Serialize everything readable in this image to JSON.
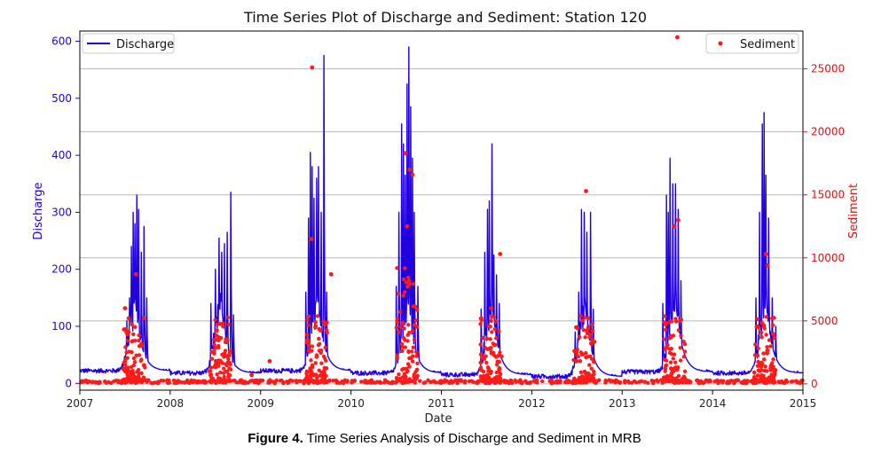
{
  "chart_data": {
    "type": "line+scatter",
    "title": "Time Series Plot of Discharge and Sediment: Station 120",
    "xlabel": "Date",
    "ylabel_left": "Discharge",
    "ylabel_right": "Sediment",
    "xlim": [
      2007,
      2015
    ],
    "ylim_left": [
      -12,
      618
    ],
    "ylim_right": [
      -500,
      28000
    ],
    "x_ticks": [
      "2007",
      "2008",
      "2009",
      "2010",
      "2011",
      "2012",
      "2013",
      "2014",
      "2015"
    ],
    "y_left_ticks": [
      0,
      100,
      200,
      300,
      400,
      500,
      600
    ],
    "y_right_ticks": [
      0,
      5000,
      10000,
      15000,
      20000,
      25000
    ],
    "grid": "horizontal (right axis)",
    "colors": {
      "discharge": "#2200dd",
      "sediment": "#ff1a1a",
      "left_axis": "#2200dd",
      "right_axis": "#dd1111"
    },
    "legend": [
      {
        "label": "Discharge",
        "location": "top-left"
      },
      {
        "label": "Sediment",
        "location": "top-right"
      }
    ],
    "discharge_baseline": [
      {
        "year": 2007,
        "base": 22
      },
      {
        "year": 2008,
        "base": 18
      },
      {
        "year": 2009,
        "base": 22
      },
      {
        "year": 2010,
        "base": 18
      },
      {
        "year": 2011,
        "base": 15
      },
      {
        "year": 2012,
        "base": 12
      },
      {
        "year": 2013,
        "base": 20
      },
      {
        "year": 2014,
        "base": 18
      }
    ],
    "discharge_peaks": [
      {
        "year": 2007,
        "center": 0.6,
        "spikes": [
          [
            0.52,
            110
          ],
          [
            0.55,
            150
          ],
          [
            0.57,
            240
          ],
          [
            0.59,
            300
          ],
          [
            0.61,
            280
          ],
          [
            0.63,
            330
          ],
          [
            0.65,
            305
          ],
          [
            0.68,
            230
          ],
          [
            0.71,
            275
          ],
          [
            0.74,
            150
          ]
        ]
      },
      {
        "year": 2008,
        "center": 0.55,
        "spikes": [
          [
            0.45,
            140
          ],
          [
            0.5,
            200
          ],
          [
            0.54,
            255
          ],
          [
            0.57,
            230
          ],
          [
            0.6,
            245
          ],
          [
            0.63,
            265
          ],
          [
            0.67,
            335
          ],
          [
            0.7,
            120
          ]
        ]
      },
      {
        "year": 2009,
        "center": 0.62,
        "spikes": [
          [
            0.5,
            160
          ],
          [
            0.53,
            290
          ],
          [
            0.55,
            405
          ],
          [
            0.57,
            380
          ],
          [
            0.59,
            325
          ],
          [
            0.62,
            360
          ],
          [
            0.64,
            380
          ],
          [
            0.67,
            300
          ],
          [
            0.7,
            575
          ],
          [
            0.73,
            160
          ]
        ]
      },
      {
        "year": 2010,
        "center": 0.62,
        "spikes": [
          [
            0.5,
            170
          ],
          [
            0.53,
            300
          ],
          [
            0.56,
            455
          ],
          [
            0.58,
            420
          ],
          [
            0.6,
            365
          ],
          [
            0.62,
            525
          ],
          [
            0.64,
            590
          ],
          [
            0.66,
            485
          ],
          [
            0.68,
            395
          ],
          [
            0.7,
            300
          ],
          [
            0.74,
            170
          ]
        ]
      },
      {
        "year": 2011,
        "center": 0.55,
        "spikes": [
          [
            0.44,
            130
          ],
          [
            0.48,
            230
          ],
          [
            0.51,
            305
          ],
          [
            0.53,
            320
          ],
          [
            0.56,
            420
          ],
          [
            0.58,
            225
          ],
          [
            0.61,
            190
          ],
          [
            0.64,
            140
          ]
        ]
      },
      {
        "year": 2012,
        "center": 0.58,
        "spikes": [
          [
            0.48,
            90
          ],
          [
            0.52,
            160
          ],
          [
            0.55,
            305
          ],
          [
            0.58,
            300
          ],
          [
            0.61,
            265
          ],
          [
            0.65,
            300
          ],
          [
            0.68,
            130
          ]
        ]
      },
      {
        "year": 2013,
        "center": 0.58,
        "spikes": [
          [
            0.45,
            140
          ],
          [
            0.49,
            330
          ],
          [
            0.51,
            300
          ],
          [
            0.53,
            395
          ],
          [
            0.56,
            350
          ],
          [
            0.59,
            350
          ],
          [
            0.62,
            305
          ],
          [
            0.65,
            180
          ]
        ]
      },
      {
        "year": 2014,
        "center": 0.58,
        "spikes": [
          [
            0.48,
            150
          ],
          [
            0.52,
            300
          ],
          [
            0.55,
            455
          ],
          [
            0.57,
            475
          ],
          [
            0.59,
            365
          ],
          [
            0.62,
            290
          ],
          [
            0.66,
            150
          ],
          [
            0.7,
            100
          ]
        ]
      }
    ],
    "sediment_outliers": [
      {
        "x": 2007.5,
        "y": 6000
      },
      {
        "x": 2007.62,
        "y": 8700
      },
      {
        "x": 2008.5,
        "y": 3500
      },
      {
        "x": 2009.57,
        "y": 25100
      },
      {
        "x": 2009.56,
        "y": 11500
      },
      {
        "x": 2009.78,
        "y": 8700
      },
      {
        "x": 2010.6,
        "y": 18300
      },
      {
        "x": 2010.65,
        "y": 17000
      },
      {
        "x": 2010.68,
        "y": 16600
      },
      {
        "x": 2010.62,
        "y": 12500
      },
      {
        "x": 2011.55,
        "y": 6000
      },
      {
        "x": 2011.65,
        "y": 10300
      },
      {
        "x": 2012.6,
        "y": 15300
      },
      {
        "x": 2013.61,
        "y": 27500
      },
      {
        "x": 2013.58,
        "y": 12500
      },
      {
        "x": 2013.62,
        "y": 13000
      },
      {
        "x": 2014.59,
        "y": 10300
      },
      {
        "x": 2014.61,
        "y": 9400
      },
      {
        "x": 2009.1,
        "y": 1800
      },
      {
        "x": 2008.9,
        "y": 700
      }
    ]
  },
  "caption": {
    "label": "Figure 4.",
    "text": " Time Series Analysis of Discharge and Sediment in MRB"
  }
}
